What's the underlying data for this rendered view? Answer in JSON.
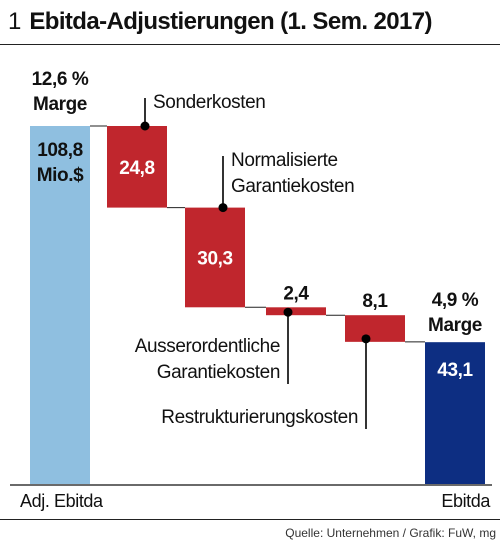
{
  "header": {
    "number": "1",
    "title": "Ebitda-Adjustierungen (1. Sem. 2017)"
  },
  "footer": {
    "source": "Quelle: Unternehmen / Grafik: FuW, mg"
  },
  "colors": {
    "start_bar": "#8fbfe0",
    "adjustment": "#c0262d",
    "end_bar": "#0d2e82",
    "label_on_bar": "#ffffff",
    "connector": "#222222"
  },
  "chart_data": {
    "type": "bar",
    "subtype": "waterfall",
    "title": "Ebitda-Adjustierungen (1. Sem. 2017)",
    "unit": "Mio.$",
    "categories": [
      "Adj. Ebitda",
      "Sonderkosten",
      "Normalisierte Garantiekosten",
      "Ausserordentliche Garantiekosten",
      "Restrukturierungskosten",
      "Ebitda"
    ],
    "values": [
      108.8,
      -24.8,
      -30.3,
      -2.4,
      -8.1,
      43.1
    ],
    "value_labels": [
      "108,8",
      "24,8",
      "30,3",
      "2,4",
      "8,1",
      "43,1"
    ],
    "start": {
      "label": "Adj. Ebitda",
      "value": 108.8,
      "value_text": "108,8",
      "unit_text": "Mio.$",
      "margin_text": "12,6 %",
      "margin_word": "Marge"
    },
    "end": {
      "label": "Ebitda",
      "value": 43.1,
      "value_text": "43,1",
      "margin_text": "4,9 %",
      "margin_word": "Marge"
    },
    "steps": [
      {
        "lines": [
          "Sonderkosten"
        ],
        "value": 24.8,
        "value_text": "24,8"
      },
      {
        "lines": [
          "Normalisierte",
          "Garantiekosten"
        ],
        "value": 30.3,
        "value_text": "30,3"
      },
      {
        "lines": [
          "Ausserordentliche",
          "Garantiekosten"
        ],
        "value": 2.4,
        "value_text": "2,4"
      },
      {
        "lines": [
          "Restrukturierungskosten"
        ],
        "value": 8.1,
        "value_text": "8,1"
      }
    ],
    "ylim": [
      0,
      108.8
    ],
    "grid": false,
    "legend": "none"
  }
}
